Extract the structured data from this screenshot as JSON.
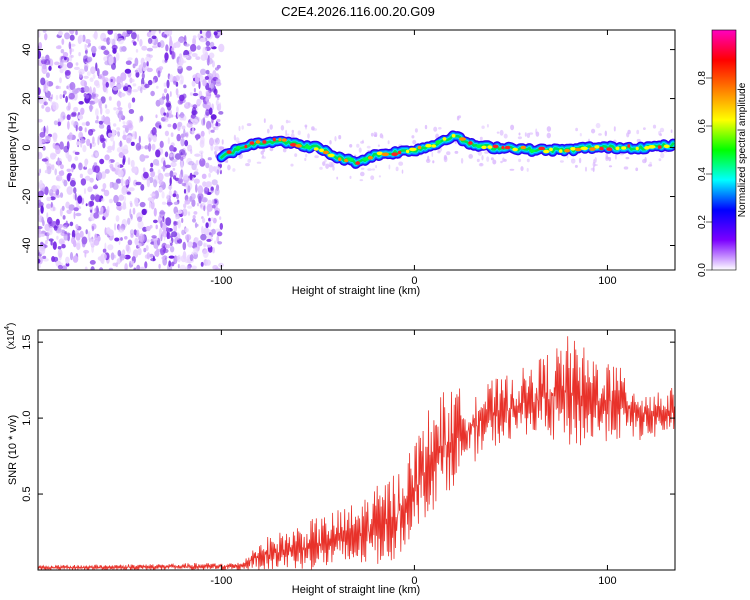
{
  "page": {
    "title": "C2E4.2026.116.00.20.G09"
  },
  "chart_data": [
    {
      "type": "heatmap",
      "title": "C2E4.2026.116.00.20.G09",
      "xlabel": "Height of straight line (km)",
      "ylabel": "Frequency (Hz)",
      "xlim": [
        -195,
        135
      ],
      "ylim": [
        -50,
        48
      ],
      "x_ticks": [
        -100,
        0,
        100
      ],
      "x_tick_labels": [
        "-100",
        "0",
        "100"
      ],
      "y_ticks": [
        -40,
        -20,
        0,
        20,
        40
      ],
      "y_tick_labels": [
        "-40",
        "-20",
        "0",
        "20",
        "40"
      ],
      "noise_region_x": [
        -195,
        -100
      ],
      "ridge": {
        "x": [
          -100,
          -90,
          -80,
          -70,
          -60,
          -50,
          -40,
          -30,
          -20,
          -10,
          0,
          10,
          20,
          30,
          40,
          50,
          60,
          70,
          80,
          90,
          100,
          110,
          120,
          135
        ],
        "freq_hz": [
          -4,
          0,
          2,
          3,
          1,
          0,
          -4,
          -6,
          -3,
          -2,
          -1,
          1,
          5,
          1,
          0,
          0,
          -1,
          -1,
          -1,
          0,
          0,
          0,
          0,
          1
        ]
      },
      "colorbar": {
        "label": "Normalized spectral amplitude",
        "range": [
          0.0,
          1.0
        ],
        "ticks": [
          0.0,
          0.2,
          0.4,
          0.6,
          0.8
        ],
        "tick_labels": [
          "0.0",
          "0.2",
          "0.4",
          "0.6",
          "0.8"
        ],
        "colormap": [
          "#ffffff",
          "#7b00ff",
          "#0000ff",
          "#00ffff",
          "#00ff00",
          "#ffff00",
          "#ff8000",
          "#ff0000",
          "#ff00c0"
        ]
      }
    },
    {
      "type": "line",
      "xlabel": "Height of straight line (km)",
      "ylabel": "SNR (10 * v/v)",
      "exponent_label": "(x10",
      "exponent_power": "4",
      "xlim": [
        -195,
        135
      ],
      "ylim": [
        0,
        1.58
      ],
      "x_ticks": [
        -100,
        0,
        100
      ],
      "x_tick_labels": [
        "-100",
        "0",
        "100"
      ],
      "y_ticks": [
        0.5,
        1.0,
        1.5
      ],
      "y_tick_labels": [
        "0.5",
        "1.0",
        "1.5"
      ],
      "series": [
        {
          "name": "SNR",
          "color": "#e8322a",
          "envelope": {
            "x": [
              -195,
              -90,
              -80,
              -70,
              -60,
              -50,
              -40,
              -30,
              -20,
              -10,
              0,
              10,
              20,
              30,
              40,
              50,
              60,
              70,
              80,
              90,
              100,
              110,
              120,
              135
            ],
            "low": [
              0.0,
              0.0,
              0.0,
              0.0,
              0.0,
              0.0,
              0.0,
              0.01,
              0.03,
              0.05,
              0.25,
              0.4,
              0.55,
              0.7,
              0.8,
              0.85,
              0.9,
              0.85,
              0.8,
              0.8,
              0.85,
              0.85,
              0.85,
              0.9
            ],
            "high": [
              0.03,
              0.05,
              0.2,
              0.25,
              0.3,
              0.35,
              0.4,
              0.45,
              0.55,
              0.65,
              0.85,
              1.15,
              1.2,
              1.2,
              1.25,
              1.3,
              1.35,
              1.45,
              1.55,
              1.45,
              1.4,
              1.3,
              1.2,
              1.2
            ]
          }
        }
      ]
    }
  ]
}
